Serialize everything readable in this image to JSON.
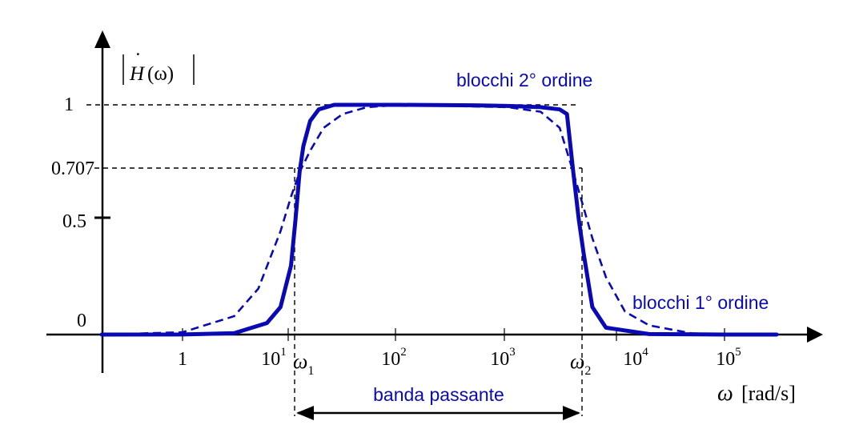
{
  "chart_data": {
    "type": "line",
    "ylabel": "|Ḣ(ω)|",
    "y_label_main": "H",
    "y_label_dot": "˙",
    "y_label_arg": "(ω)",
    "xlabel_symbol": "ω",
    "xlabel_unit": "[rad/s]",
    "x_scale": "log",
    "xlim": [
      0.1,
      300000
    ],
    "ylim": [
      0,
      1.05
    ],
    "y_ticks": [
      {
        "value": 0,
        "label": "0"
      },
      {
        "value": 0.5,
        "label": "0.5"
      },
      {
        "value": 0.707,
        "label": "0.707"
      },
      {
        "value": 1,
        "label": "1"
      }
    ],
    "x_ticks": [
      {
        "value": 1,
        "base": "1",
        "exp": ""
      },
      {
        "value": 10,
        "base": "10",
        "exp": "1"
      },
      {
        "value": 100,
        "base": "10",
        "exp": "2"
      },
      {
        "value": 1000,
        "base": "10",
        "exp": "3"
      },
      {
        "value": 10000,
        "base": "10",
        "exp": "4"
      },
      {
        "value": 100000,
        "base": "10",
        "exp": "5"
      }
    ],
    "cutoffs": [
      {
        "name": "ω",
        "sub": "1",
        "value": 12
      },
      {
        "name": "ω",
        "sub": "2",
        "value": 4000
      }
    ],
    "series": [
      {
        "name": "blocchi 2° ordine",
        "style": "solid",
        "color": "#0a0ab4",
        "order": 4,
        "x": [
          0.18,
          1,
          3,
          6,
          8,
          10,
          11,
          12,
          13,
          15,
          18,
          25,
          50,
          100,
          500,
          1000,
          2000,
          3000,
          3500,
          4000,
          4500,
          5000,
          6000,
          8000,
          20000,
          100000,
          300000
        ],
        "y": [
          0,
          0.0002,
          0.006,
          0.05,
          0.12,
          0.3,
          0.5,
          0.707,
          0.82,
          0.93,
          0.98,
          1.0,
          1.0,
          1.0,
          0.998,
          0.995,
          0.99,
          0.98,
          0.96,
          0.707,
          0.5,
          0.35,
          0.12,
          0.03,
          0.002,
          0.0,
          0.0
        ]
      },
      {
        "name": "blocchi 1° ordine",
        "style": "dashed",
        "color": "#0a0ab4",
        "order": 2,
        "x": [
          0.18,
          1,
          3,
          5,
          8,
          10,
          12,
          15,
          20,
          30,
          50,
          100,
          1000,
          2000,
          3000,
          4000,
          5000,
          6000,
          8000,
          12000,
          20000,
          50000,
          300000
        ],
        "y": [
          0,
          0.01,
          0.08,
          0.2,
          0.45,
          0.6,
          0.707,
          0.8,
          0.9,
          0.96,
          0.99,
          1.0,
          0.99,
          0.97,
          0.9,
          0.707,
          0.55,
          0.42,
          0.25,
          0.1,
          0.04,
          0.005,
          0.0
        ]
      }
    ],
    "band_label": "banda passante",
    "grid": false,
    "legend": "labels near curves (top-right)"
  }
}
